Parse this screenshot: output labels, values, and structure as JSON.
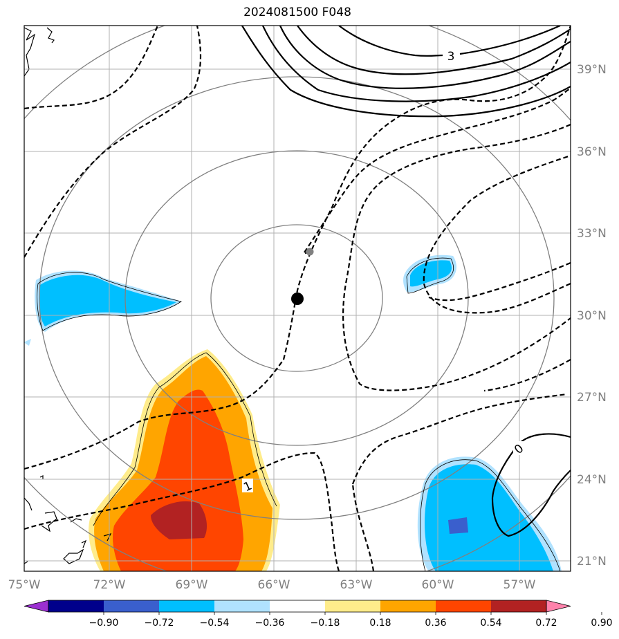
{
  "title": "2024081500 F048",
  "lon_labels": [
    "75°W",
    "72°W",
    "69°W",
    "66°W",
    "63°W",
    "60°W",
    "57°W"
  ],
  "lat_labels": [
    "39°N",
    "36°N",
    "33°N",
    "30°N",
    "27°N",
    "24°N",
    "21°N"
  ],
  "contour_labels": {
    "three": "3",
    "one": "1",
    "zero": "0"
  },
  "colorbar": {
    "ticks": [
      "−0.90",
      "−0.72",
      "−0.54",
      "−0.36",
      "−0.18",
      "0.18",
      "0.36",
      "0.54",
      "0.72",
      "0.90"
    ],
    "colors": [
      "#9b30d0",
      "#00008b",
      "#3a5fcd",
      "#00bfff",
      "#b0e2ff",
      "#ffffff",
      "#ffec8b",
      "#ffa500",
      "#ff4500",
      "#b22222",
      "#ff82ab"
    ]
  },
  "colors": {
    "grid": "#b0b0b0",
    "range_rings": "#808080",
    "positive_contour": "#000000",
    "negative_contour": "#000000",
    "track_past": "#808080",
    "track_current": "#000000"
  }
}
